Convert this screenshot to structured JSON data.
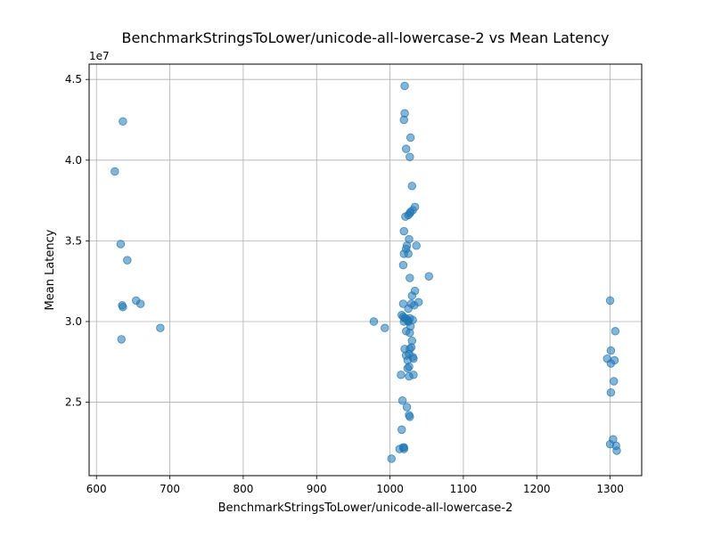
{
  "chart_data": {
    "type": "scatter",
    "title": "BenchmarkStringsToLower/unicode-all-lowercase-2 vs Mean Latency",
    "xlabel": "BenchmarkStringsToLower/unicode-all-lowercase-2",
    "ylabel": "Mean Latency",
    "y_offset_label": "1e7",
    "xlim": [
      590,
      1343
    ],
    "ylim": [
      20450000,
      45950000
    ],
    "xticks": [
      600,
      700,
      800,
      900,
      1000,
      1100,
      1200,
      1300
    ],
    "xtick_labels": [
      "600",
      "700",
      "800",
      "900",
      "1000",
      "1100",
      "1200",
      "1300"
    ],
    "yticks": [
      25000000,
      30000000,
      35000000,
      40000000,
      45000000
    ],
    "ytick_labels": [
      "2.5",
      "3.0",
      "3.5",
      "4.0",
      "4.5"
    ],
    "grid": true,
    "marker_color": "#1f77b4",
    "marker_alpha": 0.55,
    "series": [
      {
        "x": [
          636,
          625,
          633,
          642,
          635,
          636,
          654,
          660,
          687,
          634,
          978,
          993,
          1002,
          1013,
          1016,
          1018,
          1019,
          1020,
          1020,
          1019,
          1022,
          1028,
          1027,
          1030,
          1034,
          1031,
          1028,
          1027,
          1025,
          1021,
          1019,
          1026,
          1023,
          1036,
          1022,
          1025,
          1019,
          1018,
          1053,
          1027,
          1034,
          1030,
          1018,
          1039,
          1029,
          1033,
          1025,
          1016,
          1018,
          1021,
          1024,
          1027,
          1025,
          1031,
          1020,
          1019,
          1025,
          1028,
          1022,
          1027,
          1030,
          1029,
          1027,
          1026,
          1031,
          1032,
          1024,
          1026,
          1024,
          1032,
          1026,
          1015,
          1020,
          1022,
          1017,
          1023,
          1027,
          1026,
          1019,
          1300,
          1307,
          1296,
          1301,
          1306,
          1301,
          1305,
          1301,
          1304,
          1300,
          1308,
          1309
        ],
        "y": [
          42400000,
          39300000,
          34800000,
          33800000,
          31000000,
          30900000,
          31300000,
          31100000,
          29600000,
          28900000,
          30000000,
          29600000,
          21500000,
          22100000,
          23300000,
          22200000,
          22100000,
          44600000,
          42900000,
          42500000,
          40700000,
          41400000,
          40200000,
          38400000,
          37100000,
          36900000,
          36800000,
          36700000,
          36600000,
          36500000,
          35600000,
          35100000,
          34700000,
          34700000,
          34500000,
          34200000,
          34200000,
          33500000,
          32800000,
          32700000,
          31900000,
          31600000,
          31100000,
          31200000,
          31100000,
          31000000,
          30800000,
          30400000,
          30300000,
          30200000,
          30100000,
          30200000,
          30000000,
          30100000,
          30200000,
          30000000,
          30000000,
          29700000,
          29400000,
          29300000,
          28800000,
          28400000,
          28300000,
          28000000,
          27800000,
          27700000,
          27600000,
          27200000,
          27100000,
          26700000,
          26600000,
          26700000,
          28300000,
          27900000,
          25100000,
          24700000,
          24100000,
          24200000,
          22200000,
          31300000,
          29400000,
          27700000,
          28200000,
          27600000,
          27400000,
          26300000,
          25600000,
          22700000,
          22400000,
          22300000,
          22000000
        ]
      }
    ]
  }
}
